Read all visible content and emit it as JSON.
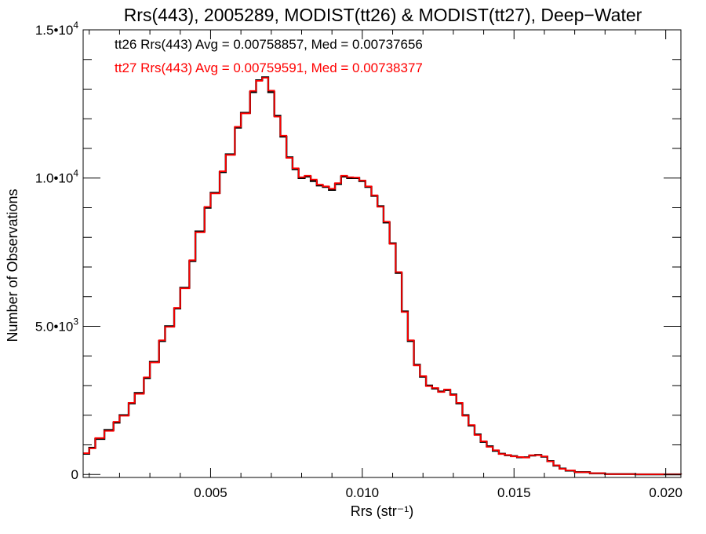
{
  "chart_data": {
    "type": "histogram-step",
    "title": "Rrs(443), 2005289, MODIST(tt26) & MODIST(tt27), Deep−Water",
    "xlabel": "Rrs (str⁻¹)",
    "ylabel": "Number of Observations",
    "xlim": [
      0.0008,
      0.0205
    ],
    "ylim": [
      -100,
      15000
    ],
    "x_ticks": [
      {
        "value": 0.005,
        "label": "0.005"
      },
      {
        "value": 0.01,
        "label": "0.010"
      },
      {
        "value": 0.015,
        "label": "0.015"
      },
      {
        "value": 0.02,
        "label": "0.020"
      }
    ],
    "y_ticks": [
      {
        "value": 0,
        "mantissa": "0",
        "exponent": ""
      },
      {
        "value": 5000,
        "mantissa": "5.0•10",
        "exponent": "3"
      },
      {
        "value": 10000,
        "mantissa": "1.0•10",
        "exponent": "4"
      },
      {
        "value": 15000,
        "mantissa": "1.5•10",
        "exponent": "4"
      }
    ],
    "annotations": [
      {
        "text": "tt26 Rrs(443) Avg = 0.00758857, Med = 0.00737656",
        "color": "#000000"
      },
      {
        "text": "tt27 Rrs(443) Avg = 0.00759591, Med = 0.00738377",
        "color": "#ff0000"
      }
    ],
    "series": [
      {
        "name": "tt26",
        "color": "#000000",
        "points": [
          [
            0.0008,
            700
          ],
          [
            0.001,
            900
          ],
          [
            0.0012,
            1200
          ],
          [
            0.0015,
            1500
          ],
          [
            0.0018,
            1750
          ],
          [
            0.002,
            2000
          ],
          [
            0.0023,
            2400
          ],
          [
            0.0025,
            2750
          ],
          [
            0.0028,
            3250
          ],
          [
            0.003,
            3800
          ],
          [
            0.0033,
            4500
          ],
          [
            0.0035,
            5000
          ],
          [
            0.0038,
            5600
          ],
          [
            0.004,
            6300
          ],
          [
            0.0043,
            7200
          ],
          [
            0.0045,
            8200
          ],
          [
            0.0048,
            9000
          ],
          [
            0.005,
            9500
          ],
          [
            0.0053,
            10200
          ],
          [
            0.0055,
            10800
          ],
          [
            0.0058,
            11700
          ],
          [
            0.006,
            12200
          ],
          [
            0.0063,
            12900
          ],
          [
            0.0065,
            13300
          ],
          [
            0.0067,
            13400
          ],
          [
            0.0069,
            12900
          ],
          [
            0.0071,
            12100
          ],
          [
            0.0073,
            11400
          ],
          [
            0.0075,
            10700
          ],
          [
            0.0077,
            10300
          ],
          [
            0.0079,
            10000
          ],
          [
            0.0081,
            10050
          ],
          [
            0.0083,
            9900
          ],
          [
            0.0085,
            9750
          ],
          [
            0.0087,
            9700
          ],
          [
            0.0089,
            9600
          ],
          [
            0.0091,
            9800
          ],
          [
            0.0093,
            10050
          ],
          [
            0.0095,
            10000
          ],
          [
            0.0097,
            10000
          ],
          [
            0.0099,
            9900
          ],
          [
            0.0101,
            9700
          ],
          [
            0.0103,
            9400
          ],
          [
            0.0105,
            9050
          ],
          [
            0.0107,
            8500
          ],
          [
            0.0109,
            7800
          ],
          [
            0.0111,
            6800
          ],
          [
            0.0113,
            5500
          ],
          [
            0.0115,
            4500
          ],
          [
            0.0117,
            3700
          ],
          [
            0.0119,
            3300
          ],
          [
            0.0121,
            3000
          ],
          [
            0.0123,
            2900
          ],
          [
            0.0125,
            2800
          ],
          [
            0.0127,
            2850
          ],
          [
            0.0129,
            2700
          ],
          [
            0.0131,
            2400
          ],
          [
            0.0133,
            2000
          ],
          [
            0.0135,
            1650
          ],
          [
            0.0137,
            1350
          ],
          [
            0.0139,
            1100
          ],
          [
            0.0141,
            950
          ],
          [
            0.0143,
            800
          ],
          [
            0.0145,
            700
          ],
          [
            0.0147,
            650
          ],
          [
            0.0149,
            620
          ],
          [
            0.0151,
            580
          ],
          [
            0.0153,
            580
          ],
          [
            0.0155,
            640
          ],
          [
            0.0157,
            660
          ],
          [
            0.0159,
            600
          ],
          [
            0.0161,
            450
          ],
          [
            0.0163,
            300
          ],
          [
            0.0165,
            200
          ],
          [
            0.0167,
            130
          ],
          [
            0.017,
            80
          ],
          [
            0.0175,
            40
          ],
          [
            0.018,
            15
          ],
          [
            0.019,
            5
          ],
          [
            0.0205,
            0
          ]
        ]
      },
      {
        "name": "tt27",
        "color": "#ff0000",
        "points": [
          [
            0.0008,
            720
          ],
          [
            0.001,
            880
          ],
          [
            0.0012,
            1230
          ],
          [
            0.0015,
            1470
          ],
          [
            0.0018,
            1780
          ],
          [
            0.002,
            1980
          ],
          [
            0.0023,
            2420
          ],
          [
            0.0025,
            2720
          ],
          [
            0.0028,
            3280
          ],
          [
            0.003,
            3780
          ],
          [
            0.0033,
            4530
          ],
          [
            0.0035,
            4980
          ],
          [
            0.0038,
            5620
          ],
          [
            0.004,
            6280
          ],
          [
            0.0043,
            7230
          ],
          [
            0.0045,
            8170
          ],
          [
            0.0048,
            9030
          ],
          [
            0.005,
            9480
          ],
          [
            0.0053,
            10230
          ],
          [
            0.0055,
            10780
          ],
          [
            0.0058,
            11730
          ],
          [
            0.006,
            12180
          ],
          [
            0.0063,
            12940
          ],
          [
            0.0065,
            13280
          ],
          [
            0.0067,
            13380
          ],
          [
            0.0069,
            12950
          ],
          [
            0.0071,
            12070
          ],
          [
            0.0073,
            11430
          ],
          [
            0.0075,
            10680
          ],
          [
            0.0077,
            10330
          ],
          [
            0.0079,
            10030
          ],
          [
            0.0081,
            10080
          ],
          [
            0.0083,
            9950
          ],
          [
            0.0085,
            9780
          ],
          [
            0.0087,
            9720
          ],
          [
            0.0089,
            9640
          ],
          [
            0.0091,
            9830
          ],
          [
            0.0093,
            10080
          ],
          [
            0.0095,
            10030
          ],
          [
            0.0097,
            10020
          ],
          [
            0.0099,
            9920
          ],
          [
            0.0101,
            9720
          ],
          [
            0.0103,
            9420
          ],
          [
            0.0105,
            9030
          ],
          [
            0.0107,
            8530
          ],
          [
            0.0109,
            7780
          ],
          [
            0.0111,
            6830
          ],
          [
            0.0113,
            5480
          ],
          [
            0.0115,
            4530
          ],
          [
            0.0117,
            3680
          ],
          [
            0.0119,
            3320
          ],
          [
            0.0121,
            2980
          ],
          [
            0.0123,
            2920
          ],
          [
            0.0125,
            2780
          ],
          [
            0.0127,
            2870
          ],
          [
            0.0129,
            2680
          ],
          [
            0.0131,
            2420
          ],
          [
            0.0133,
            1980
          ],
          [
            0.0135,
            1670
          ],
          [
            0.0137,
            1330
          ],
          [
            0.0139,
            1120
          ],
          [
            0.0141,
            930
          ],
          [
            0.0143,
            820
          ],
          [
            0.0145,
            690
          ],
          [
            0.0147,
            660
          ],
          [
            0.0149,
            610
          ],
          [
            0.0151,
            590
          ],
          [
            0.0153,
            570
          ],
          [
            0.0155,
            650
          ],
          [
            0.0157,
            650
          ],
          [
            0.0159,
            610
          ],
          [
            0.0161,
            440
          ],
          [
            0.0163,
            310
          ],
          [
            0.0165,
            190
          ],
          [
            0.0167,
            140
          ],
          [
            0.017,
            75
          ],
          [
            0.0175,
            45
          ],
          [
            0.018,
            12
          ],
          [
            0.019,
            6
          ],
          [
            0.0205,
            0
          ]
        ]
      }
    ]
  }
}
